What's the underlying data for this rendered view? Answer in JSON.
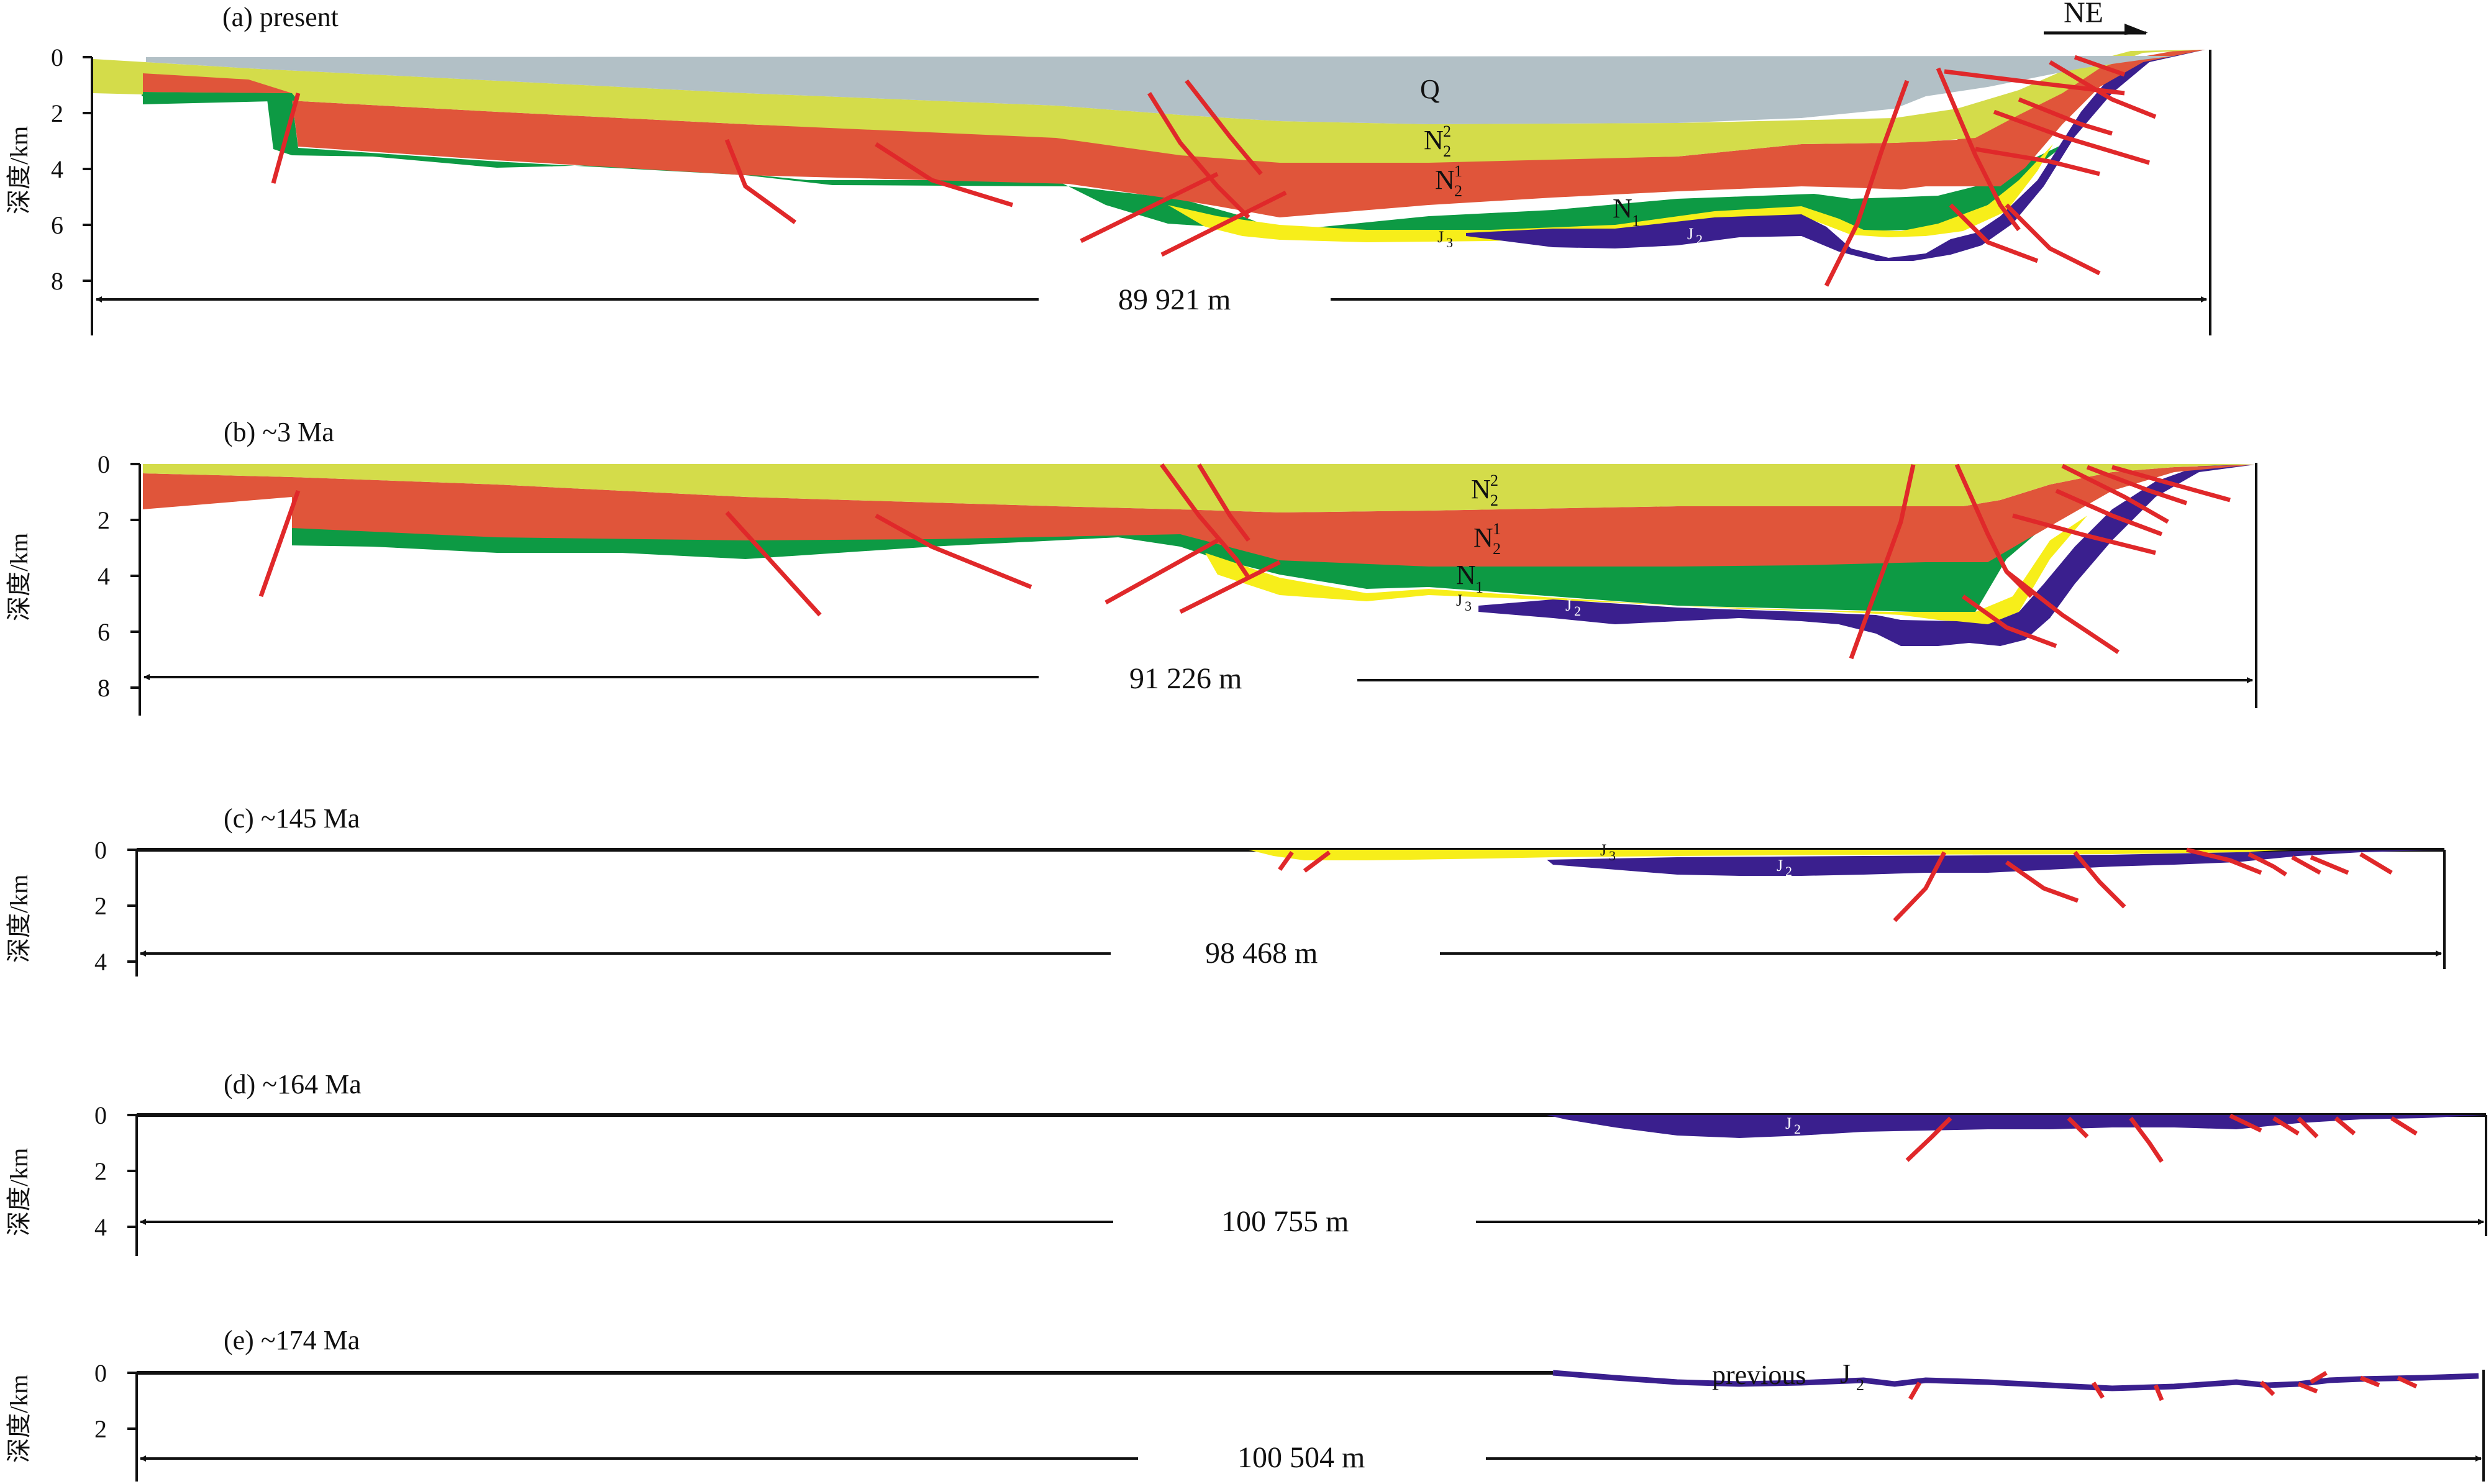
{
  "direction": {
    "label": "NE"
  },
  "y_axis": {
    "title": "深度/km"
  },
  "colors": {
    "Q": "#b2c0c6",
    "N2_2": "#d4dc4a",
    "N2_1": "#e0553a",
    "N1": "#0d9a44",
    "J3": "#f7ee1a",
    "J2": "#3a1f8e",
    "fault": "#e0282a",
    "line": "#111111"
  },
  "panels": [
    {
      "title": "(a) present",
      "width_label": "89 921 m",
      "ticks": [
        "0",
        "2",
        "4",
        "6",
        "8"
      ],
      "units": [
        {
          "base": "Q",
          "sup": "",
          "sub": ""
        },
        {
          "base": "N",
          "sup": "2",
          "sub": "2"
        },
        {
          "base": "N",
          "sup": "1",
          "sub": "2"
        },
        {
          "base": "N",
          "sup": "",
          "sub": "1"
        },
        {
          "base": "J",
          "sup": "",
          "sub": "3"
        },
        {
          "base": "J",
          "sup": "",
          "sub": "2"
        }
      ]
    },
    {
      "title": "(b) ~3 Ma",
      "width_label": "91 226 m",
      "ticks": [
        "0",
        "2",
        "4",
        "6",
        "8"
      ],
      "units": [
        {
          "base": "N",
          "sup": "2",
          "sub": "2"
        },
        {
          "base": "N",
          "sup": "1",
          "sub": "2"
        },
        {
          "base": "N",
          "sup": "",
          "sub": "1"
        },
        {
          "base": "J",
          "sup": "",
          "sub": "3"
        },
        {
          "base": "J",
          "sup": "",
          "sub": "2"
        }
      ]
    },
    {
      "title": "(c) ~145 Ma",
      "width_label": "98 468 m",
      "ticks": [
        "0",
        "2",
        "4"
      ],
      "units": [
        {
          "base": "J",
          "sup": "",
          "sub": "3"
        },
        {
          "base": "J",
          "sup": "",
          "sub": "2"
        }
      ]
    },
    {
      "title": "(d) ~164 Ma",
      "width_label": "100 755 m",
      "ticks": [
        "0",
        "2",
        "4"
      ],
      "units": [
        {
          "base": "J",
          "sup": "",
          "sub": "2"
        }
      ]
    },
    {
      "title": "(e) ~174 Ma",
      "width_label": "100 504 m",
      "ticks": [
        "0",
        "2"
      ],
      "previous_label": "previous",
      "units": [
        {
          "base": "J",
          "sup": "",
          "sub": "2"
        }
      ]
    }
  ]
}
